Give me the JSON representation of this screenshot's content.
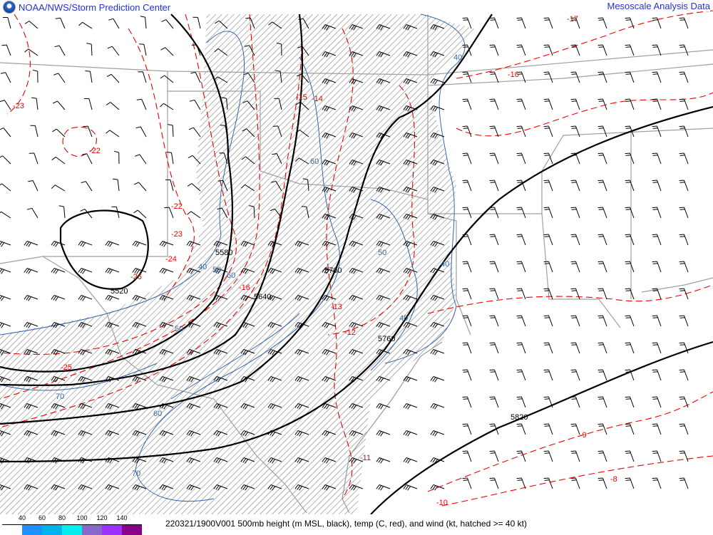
{
  "header": {
    "left_title": "NOAA/NWS/Storm Prediction Center",
    "right_title": "Mesoscale Analysis Data",
    "logo": "noaa-logo"
  },
  "footer": {
    "caption": "220321/1900V001 500mb height (m MSL, black), temp (C, red), and wind (kt, hatched >= 40 kt)",
    "legend_ticks": [
      "40",
      "60",
      "80",
      "100",
      "120",
      "140"
    ],
    "legend_colors": [
      "#ffffff",
      "#1e90ff",
      "#00b2ee",
      "#00eeee",
      "#8968cd",
      "#9b30ff",
      "#8b008b"
    ]
  },
  "colors": {
    "height": "#000000",
    "temp": "#ff0000",
    "isotach": "#3366aa",
    "border": "#a0a0a0",
    "hatch": "#444444"
  },
  "height_labels": [
    "5520",
    "5580",
    "5640",
    "5700",
    "5760",
    "5820"
  ],
  "temp_labels": [
    "-23",
    "-22",
    "-22",
    "-23",
    "-24",
    "-26",
    "-25",
    "-16",
    "-15",
    "-14",
    "-13",
    "-12",
    "-11",
    "-10",
    "-9",
    "-8",
    "-16",
    "-17"
  ],
  "isotach_labels": [
    "40",
    "50",
    "60",
    "70",
    "60",
    "50",
    "40",
    "40",
    "60",
    "70",
    "50",
    "40"
  ]
}
